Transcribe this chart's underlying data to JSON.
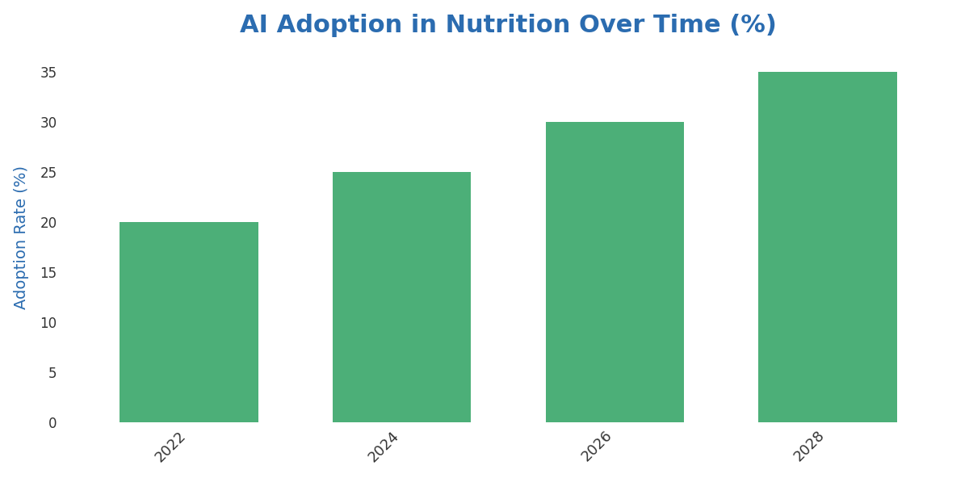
{
  "title": "AI Adoption in Nutrition Over Time (%)",
  "title_color": "#2B6CB0",
  "title_fontsize": 22,
  "title_fontweight": "bold",
  "categories": [
    "2022",
    "2024",
    "2026",
    "2028"
  ],
  "values": [
    20,
    25,
    30,
    35
  ],
  "bar_color": "#4CAF78",
  "bar_width": 0.65,
  "ylabel": "Adoption Rate (%)",
  "ylabel_color": "#2B6CB0",
  "ylabel_fontsize": 14,
  "xlabel_fontsize": 13,
  "yticks": [
    0,
    5,
    10,
    15,
    20,
    25,
    30,
    35
  ],
  "ylim": [
    0,
    37
  ],
  "background_color": "#ffffff",
  "tick_color": "#333333",
  "xtick_rotation": 45
}
